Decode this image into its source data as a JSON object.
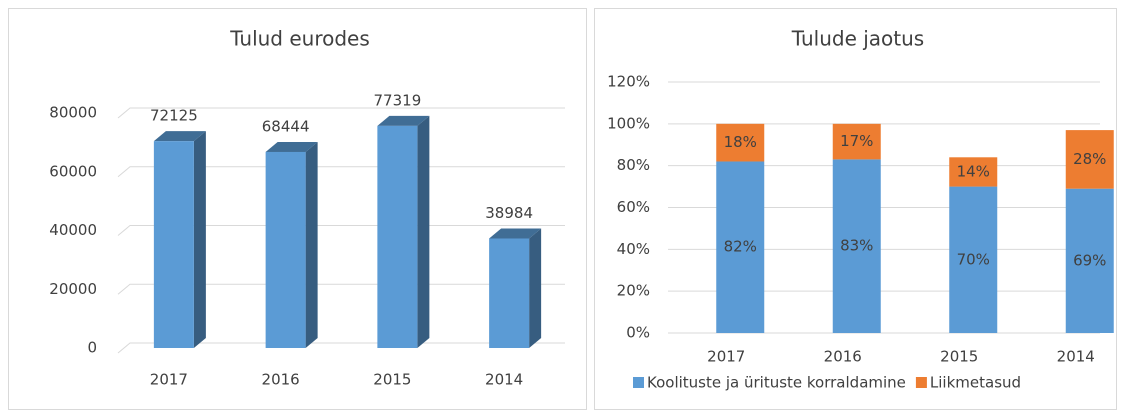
{
  "chart_data": [
    {
      "type": "bar",
      "title": "Tulud eurodes",
      "categories": [
        "2017",
        "2016",
        "2015",
        "2014"
      ],
      "values": [
        72125,
        68444,
        77319,
        38984
      ],
      "color": "#5b9bd5",
      "ylim": [
        0,
        80000
      ],
      "yticks": [
        0,
        20000,
        40000,
        60000,
        80000
      ],
      "grid": true
    },
    {
      "type": "stacked_bar",
      "title": "Tulude jaotus",
      "categories": [
        "2017",
        "2016",
        "2015",
        "2014"
      ],
      "series": [
        {
          "name": "Koolituste ja ürituste korraldamine",
          "color": "#5b9bd5",
          "values": [
            82,
            83,
            70,
            69
          ],
          "value_labels": [
            "82%",
            "83%",
            "70%",
            "69%"
          ]
        },
        {
          "name": "Liikmetasud",
          "color": "#ed7d31",
          "values": [
            18,
            17,
            14,
            28
          ],
          "value_labels": [
            "18%",
            "17%",
            "14%",
            "28%"
          ]
        }
      ],
      "ylim": [
        0,
        120
      ],
      "yticks": [
        {
          "value": 0,
          "label": "0%"
        },
        {
          "value": 20,
          "label": "20%"
        },
        {
          "value": 40,
          "label": "40%"
        },
        {
          "value": 60,
          "label": "60%"
        },
        {
          "value": 80,
          "label": "80%"
        },
        {
          "value": 100,
          "label": "100%"
        },
        {
          "value": 120,
          "label": "120%"
        }
      ],
      "grid": true,
      "legend": "bottom"
    }
  ]
}
